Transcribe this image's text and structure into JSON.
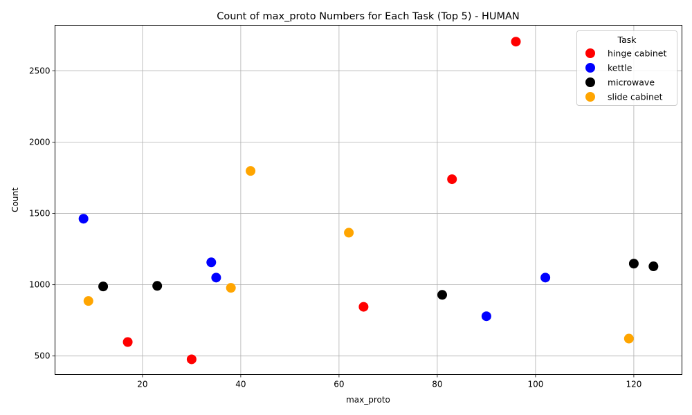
{
  "chart_data": {
    "type": "scatter",
    "title": "Count of max_proto Numbers for Each Task (Top 5) - HUMAN",
    "xlabel": "max_proto",
    "ylabel": "Count",
    "xlim": [
      2.2,
      129.8
    ],
    "ylim": [
      370,
      2820
    ],
    "xticks": [
      20,
      40,
      60,
      80,
      100,
      120
    ],
    "yticks": [
      500,
      1000,
      1500,
      2000,
      2500
    ],
    "grid": true,
    "legend": {
      "title": "Task",
      "position": "top-right"
    },
    "series": [
      {
        "name": "hinge cabinet",
        "color": "#ff0000",
        "points": [
          [
            96,
            2705
          ],
          [
            83,
            1740
          ],
          [
            65,
            845
          ],
          [
            17,
            598
          ],
          [
            30,
            477
          ]
        ]
      },
      {
        "name": "kettle",
        "color": "#0000ff",
        "points": [
          [
            8,
            1463
          ],
          [
            34,
            1157
          ],
          [
            35,
            1050
          ],
          [
            102,
            1050
          ],
          [
            90,
            779
          ]
        ]
      },
      {
        "name": "microwave",
        "color": "#000000",
        "points": [
          [
            12,
            988
          ],
          [
            23,
            992
          ],
          [
            81,
            929
          ],
          [
            120,
            1148
          ],
          [
            124,
            1129
          ]
        ]
      },
      {
        "name": "slide cabinet",
        "color": "#ffa500",
        "points": [
          [
            42,
            1798
          ],
          [
            62,
            1365
          ],
          [
            38,
            978
          ],
          [
            9,
            886
          ],
          [
            119,
            622
          ]
        ]
      }
    ]
  }
}
